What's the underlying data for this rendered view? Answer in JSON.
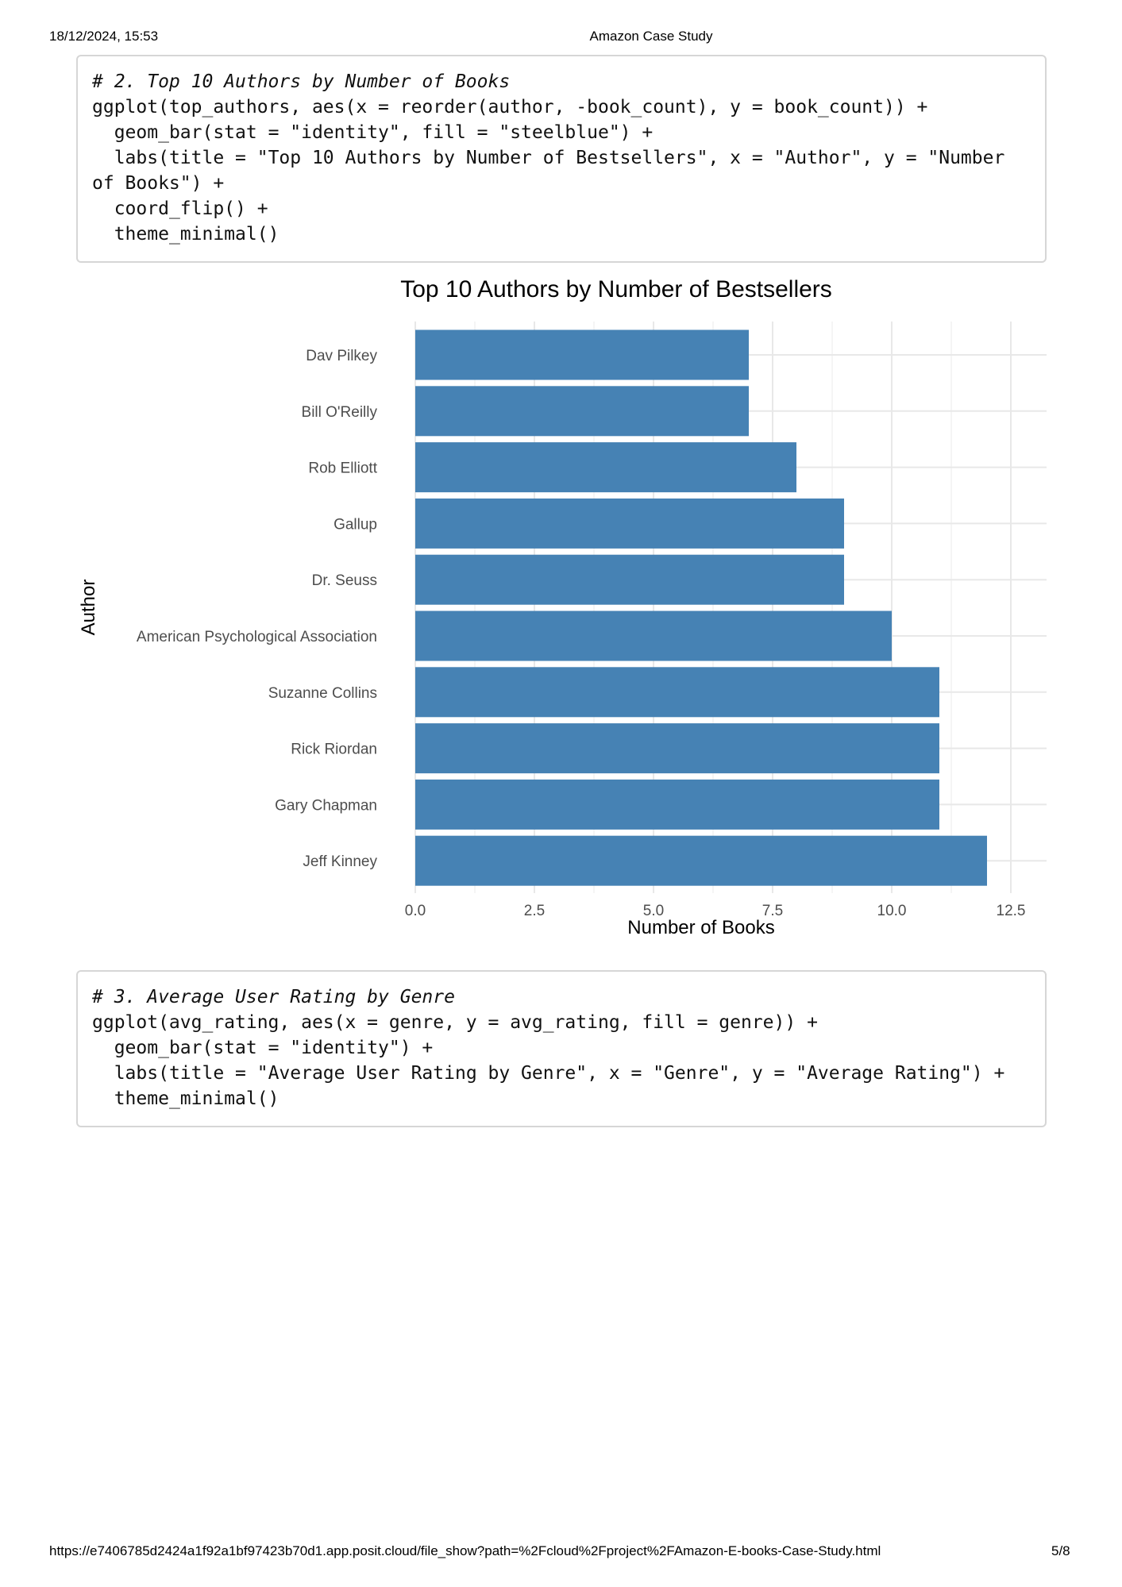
{
  "header": {
    "datetime": "18/12/2024, 15:53",
    "doc_title": "Amazon Case Study"
  },
  "code_block_1": {
    "comment": "# 2. Top 10 Authors by Number of Books",
    "code": "ggplot(top_authors, aes(x = reorder(author, -book_count), y = book_count)) +\n  geom_bar(stat = \"identity\", fill = \"steelblue\") +\n  labs(title = \"Top 10 Authors by Number of Bestsellers\", x = \"Author\", y = \"Number of Books\") +\n  coord_flip() +\n  theme_minimal()"
  },
  "chart_data": {
    "type": "bar",
    "orientation": "horizontal",
    "title": "Top 10 Authors by Number of Bestsellers",
    "xlabel": "Number of Books",
    "ylabel": "Author",
    "categories": [
      "Dav Pilkey",
      "Bill O'Reilly",
      "Rob Elliott",
      "Gallup",
      "Dr. Seuss",
      "American Psychological Association",
      "Suzanne Collins",
      "Rick Riordan",
      "Gary Chapman",
      "Jeff Kinney"
    ],
    "values": [
      7,
      7,
      8,
      9,
      9,
      10,
      11,
      11,
      11,
      12
    ],
    "xlim": [
      0,
      12.5
    ],
    "ticks": [
      0,
      2.5,
      5,
      7.5,
      10,
      12.5
    ],
    "tick_labels": [
      "0.0",
      "2.5",
      "5.0",
      "7.5",
      "10.0",
      "12.5"
    ],
    "bar_color": "#4682b4",
    "grid": true
  },
  "code_block_2": {
    "comment": "# 3. Average User Rating by Genre",
    "code": "ggplot(avg_rating, aes(x = genre, y = avg_rating, fill = genre)) +\n  geom_bar(stat = \"identity\") +\n  labs(title = \"Average User Rating by Genre\", x = \"Genre\", y = \"Average Rating\") +\n  theme_minimal()"
  },
  "footer": {
    "url": "https://e7406785d2424a1f92a1bf97423b70d1.app.posit.cloud/file_show?path=%2Fcloud%2Fproject%2FAmazon-E-books-Case-Study.html",
    "page": "5/8"
  }
}
